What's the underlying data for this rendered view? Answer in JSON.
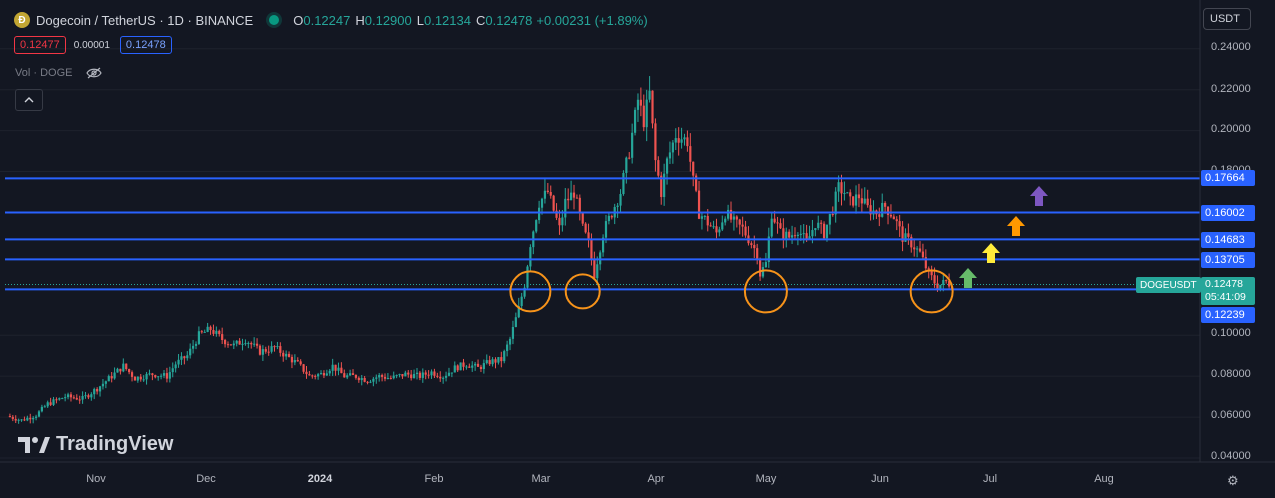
{
  "header": {
    "title": "Dogecoin / TetherUS · 1D · BINANCE",
    "o_label": "O",
    "o_value": "0.12247",
    "h_label": "H",
    "h_value": "0.12900",
    "l_label": "L",
    "l_value": "0.12134",
    "c_label": "C",
    "c_value": "0.12478",
    "change": "+0.00231 (+1.89%)"
  },
  "prices": {
    "sell": "0.12477",
    "spread": "0.00001",
    "buy": "0.12478"
  },
  "volume_label": "Vol · DOGE",
  "currency": "USDT",
  "collapse_icon": "chevron-up-icon",
  "watermark": "TradingView",
  "colors": {
    "up": "#26a69a",
    "down": "#ef5350",
    "level": "#2962ff",
    "circle": "#f7931a",
    "bg": "#131722"
  },
  "chart_data": {
    "type": "candlestick",
    "symbol": "DOGEUSDT",
    "y_axis_ticks": [
      "0.24000",
      "0.22000",
      "0.20000",
      "0.18000",
      "0.10000",
      "0.08000",
      "0.06000",
      "0.04000"
    ],
    "x_axis_ticks": [
      "Nov",
      "Dec",
      "2024",
      "Feb",
      "Mar",
      "Apr",
      "May",
      "Jun",
      "Jul",
      "Aug"
    ],
    "ylim": [
      0.04,
      0.245
    ],
    "horizontal_levels": [
      0.17664,
      0.16002,
      0.14683,
      0.13705,
      0.12239
    ],
    "level_labels": [
      "0.17664",
      "0.16002",
      "0.14683",
      "0.13705",
      "0.12239"
    ],
    "current_price": "0.12478",
    "countdown": "05:41:09",
    "support_touches": [
      "2024-02-29",
      "2024-03-06",
      "2024-05-01",
      "2024-06-17"
    ],
    "arrows": [
      {
        "color": "#66bb6a",
        "target": 0.12478
      },
      {
        "color": "#ffeb3b",
        "target": 0.13705
      },
      {
        "color": "#ff9800",
        "target": 0.14683
      },
      {
        "color": "#7e57c2",
        "target": 0.16002
      }
    ],
    "path": [
      [
        0,
        0.0605
      ],
      [
        5,
        0.0585
      ],
      [
        10,
        0.061
      ],
      [
        14,
        0.0665
      ],
      [
        20,
        0.07
      ],
      [
        26,
        0.069
      ],
      [
        31,
        0.074
      ],
      [
        36,
        0.08
      ],
      [
        40,
        0.085
      ],
      [
        44,
        0.079
      ],
      [
        50,
        0.081
      ],
      [
        55,
        0.08
      ],
      [
        58,
        0.086
      ],
      [
        62,
        0.09
      ],
      [
        66,
        0.1
      ],
      [
        70,
        0.103
      ],
      [
        74,
        0.098
      ],
      [
        78,
        0.095
      ],
      [
        82,
        0.098
      ],
      [
        87,
        0.092
      ],
      [
        92,
        0.094
      ],
      [
        96,
        0.09
      ],
      [
        100,
        0.086
      ],
      [
        104,
        0.08
      ],
      [
        108,
        0.081
      ],
      [
        112,
        0.085
      ],
      [
        116,
        0.08
      ],
      [
        120,
        0.08
      ],
      [
        124,
        0.078
      ],
      [
        128,
        0.08
      ],
      [
        132,
        0.079
      ],
      [
        137,
        0.081
      ],
      [
        142,
        0.08
      ],
      [
        146,
        0.082
      ],
      [
        150,
        0.08
      ],
      [
        154,
        0.084
      ],
      [
        158,
        0.086
      ],
      [
        162,
        0.084
      ],
      [
        166,
        0.087
      ],
      [
        170,
        0.088
      ],
      [
        173,
        0.098
      ],
      [
        176,
        0.113
      ],
      [
        178,
        0.125
      ],
      [
        180,
        0.145
      ],
      [
        183,
        0.165
      ],
      [
        186,
        0.17
      ],
      [
        190,
        0.152
      ],
      [
        192,
        0.165
      ],
      [
        195,
        0.17
      ],
      [
        198,
        0.152
      ],
      [
        200,
        0.145
      ],
      [
        202,
        0.13
      ],
      [
        205,
        0.15
      ],
      [
        208,
        0.16
      ],
      [
        211,
        0.17
      ],
      [
        214,
        0.19
      ],
      [
        217,
        0.215
      ],
      [
        219,
        0.205
      ],
      [
        221,
        0.218
      ],
      [
        223,
        0.185
      ],
      [
        225,
        0.17
      ],
      [
        227,
        0.185
      ],
      [
        230,
        0.198
      ],
      [
        234,
        0.195
      ],
      [
        236,
        0.175
      ],
      [
        238,
        0.16
      ],
      [
        241,
        0.155
      ],
      [
        244,
        0.15
      ],
      [
        247,
        0.16
      ],
      [
        250,
        0.155
      ],
      [
        253,
        0.152
      ],
      [
        256,
        0.145
      ],
      [
        258,
        0.14
      ],
      [
        259,
        0.13
      ],
      [
        261,
        0.135
      ],
      [
        263,
        0.16
      ],
      [
        266,
        0.15
      ],
      [
        269,
        0.148
      ],
      [
        272,
        0.152
      ],
      [
        275,
        0.145
      ],
      [
        278,
        0.155
      ],
      [
        281,
        0.15
      ],
      [
        284,
        0.162
      ],
      [
        286,
        0.172
      ],
      [
        288,
        0.17
      ],
      [
        290,
        0.165
      ],
      [
        293,
        0.168
      ],
      [
        296,
        0.162
      ],
      [
        299,
        0.16
      ],
      [
        302,
        0.163
      ],
      [
        305,
        0.158
      ],
      [
        308,
        0.148
      ],
      [
        311,
        0.145
      ],
      [
        314,
        0.14
      ],
      [
        317,
        0.13
      ],
      [
        320,
        0.124
      ],
      [
        323,
        0.126
      ],
      [
        325,
        0.1248
      ]
    ]
  }
}
